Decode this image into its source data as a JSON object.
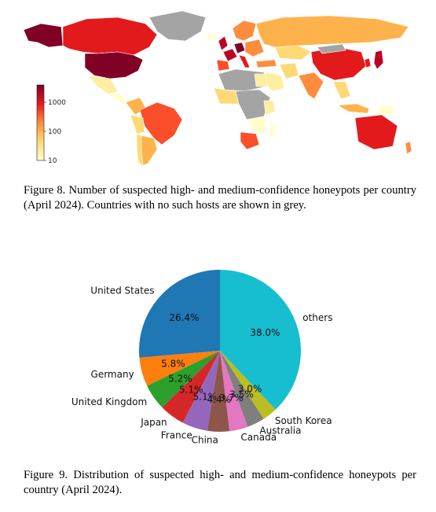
{
  "map": {
    "colorbar_ticks": [
      "1000",
      "100",
      "10"
    ],
    "colors": {
      "no_data": "#a4a4a4",
      "scale": [
        "#ffffcc",
        "#ffeda0",
        "#fed976",
        "#feb24c",
        "#fd8d3c",
        "#fc4e2a",
        "#e31a1c",
        "#bd0026",
        "#800026"
      ]
    }
  },
  "captions": {
    "fig8": "Figure 8. Number of suspected high- and medium-confidence honeypots per country (April 2024). Countries with no such hosts are shown in grey.",
    "fig9": "Figure 9. Distribution of suspected high- and medium-confidence honeypots per country (April 2024)."
  },
  "chart_data": [
    {
      "type": "map",
      "title": "",
      "scale": "log",
      "colorbar_range": [
        10,
        2000
      ],
      "colorbar_ticks": [
        10,
        100,
        1000
      ]
    },
    {
      "type": "pie",
      "title": "",
      "start_angle_deg": 90,
      "direction": "counterclockwise",
      "slices": [
        {
          "label": "United States",
          "value": 26.4,
          "pct_label": "26.4%",
          "color": "#1f77b4"
        },
        {
          "label": "Germany",
          "value": 5.8,
          "pct_label": "5.8%",
          "color": "#ff7f0e"
        },
        {
          "label": "United Kingdom",
          "value": 5.2,
          "pct_label": "5.2%",
          "color": "#2ca02c"
        },
        {
          "label": "Japan",
          "value": 5.1,
          "pct_label": "5.1%",
          "color": "#d62728"
        },
        {
          "label": "France",
          "value": 5.1,
          "pct_label": "5.1%",
          "color": "#9467bd"
        },
        {
          "label": "China",
          "value": 4.4,
          "pct_label": "4.4%",
          "color": "#8c564b"
        },
        {
          "label": "Canada",
          "value": 3.7,
          "pct_label": "3.7%",
          "color": "#e377c2"
        },
        {
          "label": "Australia",
          "value": 3.5,
          "pct_label": "3.5%",
          "color": "#7f7f7f"
        },
        {
          "label": "South Korea",
          "value": 3.0,
          "pct_label": "3.0%",
          "color": "#bcbd22"
        },
        {
          "label": "others",
          "value": 38.0,
          "pct_label": "38.0%",
          "color": "#17becf"
        }
      ]
    }
  ]
}
